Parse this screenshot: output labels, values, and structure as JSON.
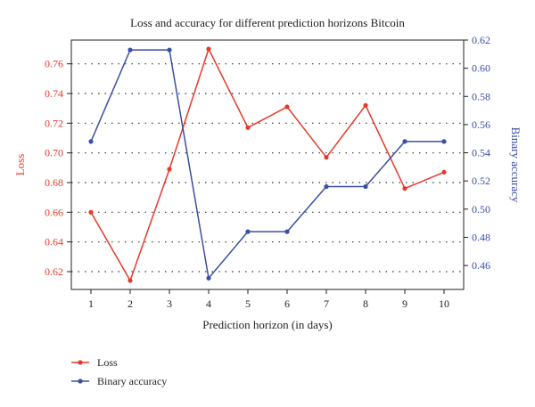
{
  "chart_data": {
    "type": "line",
    "title": "Loss and accuracy for different prediction horizons Bitcoin",
    "xlabel": "Prediction horizon (in days)",
    "x": [
      1,
      2,
      3,
      4,
      5,
      6,
      7,
      8,
      9,
      10
    ],
    "xlim": [
      0.5,
      10.5
    ],
    "y_left": {
      "label": "Loss",
      "ylim": [
        0.608,
        0.776
      ],
      "ticks": [
        0.62,
        0.64,
        0.66,
        0.68,
        0.7,
        0.72,
        0.74,
        0.76
      ],
      "color": "#e8382a"
    },
    "y_right": {
      "label": "Binary accuracy",
      "ylim": [
        0.443,
        0.62
      ],
      "ticks": [
        0.46,
        0.48,
        0.5,
        0.52,
        0.54,
        0.56,
        0.58,
        0.6,
        0.62
      ],
      "color": "#3a4ea3"
    },
    "grid": "dotted-horizontal",
    "legend_position": "bottom-left",
    "series": [
      {
        "name": "Loss",
        "axis": "left",
        "color": "#e8382a",
        "values": [
          0.66,
          0.614,
          0.689,
          0.77,
          0.717,
          0.731,
          0.697,
          0.732,
          0.676,
          0.687
        ]
      },
      {
        "name": "Binary accuracy",
        "axis": "right",
        "color": "#3a4ea3",
        "values": [
          0.548,
          0.613,
          0.613,
          0.451,
          0.484,
          0.484,
          0.516,
          0.516,
          0.548,
          0.548
        ]
      }
    ]
  }
}
